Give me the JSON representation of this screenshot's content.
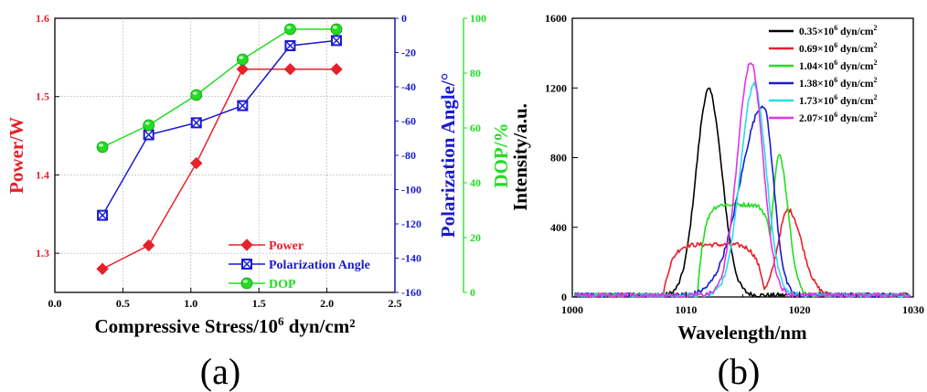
{
  "chart_data": [
    {
      "type": "line",
      "panel_label": "(a)",
      "xlabel_main": "Compressive Stress/10",
      "xlabel_exp": "6",
      "xlabel_tail": " dyn/cm²",
      "xlim": [
        0.0,
        2.5
      ],
      "xticks": [
        "0.0",
        "0.5",
        "1.0",
        "1.5",
        "2.0",
        "2.5"
      ],
      "x": [
        0.35,
        0.69,
        1.04,
        1.38,
        1.73,
        2.07
      ],
      "axes": {
        "left": {
          "label": "Power/W",
          "ylim": [
            1.25,
            1.6
          ],
          "ticks": [
            "1.3",
            "1.4",
            "1.5",
            "1.6"
          ],
          "color": "#e8202a"
        },
        "right1": {
          "label": "Polarization Angle/°",
          "ylim": [
            -160,
            0
          ],
          "ticks": [
            "-160",
            "-140",
            "-120",
            "-100",
            "-80",
            "-60",
            "-40",
            "-20",
            "0"
          ],
          "color": "#1a1ad0"
        },
        "right2": {
          "label": "DOP/%",
          "ylim": [
            0,
            100
          ],
          "ticks": [
            "0",
            "20",
            "40",
            "60",
            "80",
            "100"
          ],
          "color": "#22dd22"
        }
      },
      "series": [
        {
          "name": "Power",
          "axis": "left",
          "color": "#e8202a",
          "marker": "diamond",
          "values": [
            1.28,
            1.31,
            1.415,
            1.535,
            1.535,
            1.535
          ]
        },
        {
          "name": "Polarization Angle",
          "axis": "right1",
          "color": "#1a1ad0",
          "marker": "square-x",
          "values": [
            -115,
            -68,
            -61,
            -51,
            -16,
            -13
          ]
        },
        {
          "name": "DOP",
          "axis": "right2",
          "color": "#22dd22",
          "marker": "circle",
          "values": [
            53,
            61,
            72,
            85,
            96,
            96
          ]
        }
      ],
      "grid": true,
      "legend_position": "bottom-right"
    },
    {
      "type": "line",
      "panel_label": "(b)",
      "xlabel": "Wavelength/nm",
      "ylabel": "Intensity/a.u.",
      "xlim": [
        1000,
        1030
      ],
      "ylim": [
        0,
        1600
      ],
      "xticks": [
        "1000",
        "1010",
        "1020",
        "1030"
      ],
      "yticks": [
        "0",
        "400",
        "800",
        "1200",
        "1600"
      ],
      "legend_position": "top-right",
      "legend_unit": " dyn/cm",
      "legend_unit_exp": "2",
      "series": [
        {
          "name": "0.35×10⁶ dyn/cm²",
          "label_main": "0.35×10",
          "label_exp": "6",
          "color": "#000000",
          "peak": 1012.0,
          "peak_value": 1180,
          "sigma_left": 1.1,
          "sigma_right": 1.15,
          "shoulder": null
        },
        {
          "name": "0.69×10⁶ dyn/cm²",
          "label_main": "0.69×10",
          "label_exp": "6",
          "color": "#e8202a",
          "peak": 1019.0,
          "peak_value": 490,
          "sigma_left": 0.9,
          "sigma_right": 1.2,
          "shoulder": {
            "from": 1008.0,
            "to": 1017.0,
            "value": 290
          }
        },
        {
          "name": "1.04×10⁶ dyn/cm²",
          "label_main": "1.04×10",
          "label_exp": "6",
          "color": "#22dd22",
          "peak": 1018.2,
          "peak_value": 800,
          "sigma_left": 0.6,
          "sigma_right": 0.8,
          "shoulder": {
            "from": 1011.0,
            "to": 1018.0,
            "value": 520
          }
        },
        {
          "name": "1.38×10⁶ dyn/cm²",
          "label_main": "1.38×10",
          "label_exp": "6",
          "color": "#1a1ad0",
          "peak": 1016.8,
          "peak_value": 1090,
          "sigma_left": 2.0,
          "sigma_right": 0.9,
          "shoulder": null
        },
        {
          "name": "1.73×10⁶ dyn/cm²",
          "label_main": "1.73×10",
          "label_exp": "6",
          "color": "#22e0e6",
          "peak": 1016.0,
          "peak_value": 1210,
          "sigma_left": 1.2,
          "sigma_right": 1.05,
          "shoulder": null
        },
        {
          "name": "2.07×10⁶ dyn/cm²",
          "label_main": "2.07×10",
          "label_exp": "6",
          "color": "#e632e6",
          "peak": 1015.7,
          "peak_value": 1340,
          "sigma_left": 1.15,
          "sigma_right": 1.05,
          "shoulder": null
        }
      ]
    }
  ]
}
